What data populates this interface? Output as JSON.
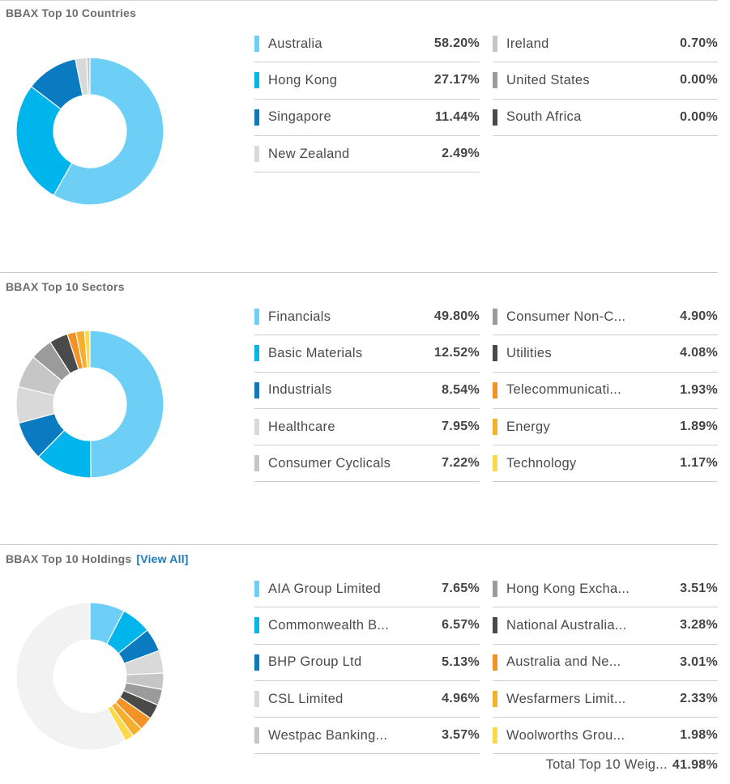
{
  "countries": {
    "title": "BBAX Top 10 Countries",
    "items": [
      {
        "label": "Australia",
        "value": "58.20%",
        "pct": 58.2,
        "color": "#6ecff6"
      },
      {
        "label": "Hong Kong",
        "value": "27.17%",
        "pct": 27.17,
        "color": "#00b5ec"
      },
      {
        "label": "Singapore",
        "value": "11.44%",
        "pct": 11.44,
        "color": "#0a7bc1"
      },
      {
        "label": "New Zealand",
        "value": "2.49%",
        "pct": 2.49,
        "color": "#d9d9d9"
      },
      {
        "label": "Ireland",
        "value": "0.70%",
        "pct": 0.7,
        "color": "#c6c6c6"
      },
      {
        "label": "United States",
        "value": "0.00%",
        "pct": 0.0,
        "color": "#9b9b9b"
      },
      {
        "label": "South Africa",
        "value": "0.00%",
        "pct": 0.0,
        "color": "#4a4a4a"
      }
    ]
  },
  "sectors": {
    "title": "BBAX Top 10 Sectors",
    "items": [
      {
        "label": "Financials",
        "value": "49.80%",
        "pct": 49.8,
        "color": "#6ecff6"
      },
      {
        "label": "Basic Materials",
        "value": "12.52%",
        "pct": 12.52,
        "color": "#00b5ec"
      },
      {
        "label": "Industrials",
        "value": "8.54%",
        "pct": 8.54,
        "color": "#0a7bc1"
      },
      {
        "label": "Healthcare",
        "value": "7.95%",
        "pct": 7.95,
        "color": "#d9d9d9"
      },
      {
        "label": "Consumer Cyclicals",
        "value": "7.22%",
        "pct": 7.22,
        "color": "#c6c6c6"
      },
      {
        "label": "Consumer Non-C...",
        "value": "4.90%",
        "pct": 4.9,
        "color": "#9b9b9b"
      },
      {
        "label": "Utilities",
        "value": "4.08%",
        "pct": 4.08,
        "color": "#4a4a4a"
      },
      {
        "label": "Telecommunicati...",
        "value": "1.93%",
        "pct": 1.93,
        "color": "#f39325"
      },
      {
        "label": "Energy",
        "value": "1.89%",
        "pct": 1.89,
        "color": "#f6ae2d"
      },
      {
        "label": "Technology",
        "value": "1.17%",
        "pct": 1.17,
        "color": "#fbd94b"
      }
    ]
  },
  "holdings": {
    "title": "BBAX Top 10 Holdings",
    "view_all": "[View All]",
    "total_label": "Total Top 10 Weig...",
    "total_value": "41.98%",
    "rest_color": "#f2f2f2",
    "items": [
      {
        "label": "AIA Group Limited",
        "value": "7.65%",
        "pct": 7.65,
        "color": "#6ecff6"
      },
      {
        "label": "Commonwealth B...",
        "value": "6.57%",
        "pct": 6.57,
        "color": "#00b5ec"
      },
      {
        "label": "BHP Group Ltd",
        "value": "5.13%",
        "pct": 5.13,
        "color": "#0a7bc1"
      },
      {
        "label": "CSL Limited",
        "value": "4.96%",
        "pct": 4.96,
        "color": "#d9d9d9"
      },
      {
        "label": "Westpac Banking...",
        "value": "3.57%",
        "pct": 3.57,
        "color": "#c6c6c6"
      },
      {
        "label": "Hong Kong Excha...",
        "value": "3.51%",
        "pct": 3.51,
        "color": "#9b9b9b"
      },
      {
        "label": "National Australia...",
        "value": "3.28%",
        "pct": 3.28,
        "color": "#4a4a4a"
      },
      {
        "label": "Australia and Ne...",
        "value": "3.01%",
        "pct": 3.01,
        "color": "#f39325"
      },
      {
        "label": "Wesfarmers Limit...",
        "value": "2.33%",
        "pct": 2.33,
        "color": "#f6ae2d"
      },
      {
        "label": "Woolworths Grou...",
        "value": "1.98%",
        "pct": 1.98,
        "color": "#fbd94b"
      }
    ]
  }
}
